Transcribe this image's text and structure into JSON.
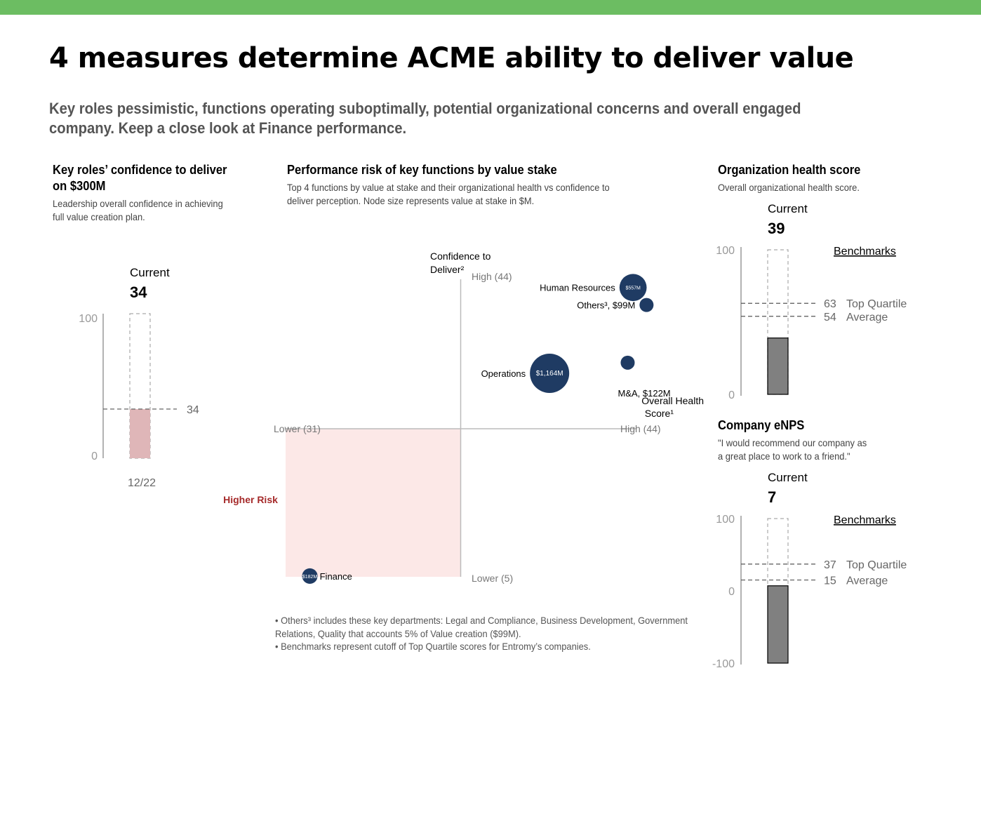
{
  "header": {
    "title": "4 measures determine ACME ability to deliver value",
    "subtitle": "Key roles pessimistic, functions operating suboptimally, potential organizational concerns and overall engaged company. Keep a close look at Finance performance."
  },
  "colors": {
    "top_bar": "#6cbd62",
    "bubble": "#1f3b63",
    "risk_zone": "#fce8e7",
    "higher_risk": "#a52a2a",
    "confidence_bar": "#dfb6b8",
    "score_bar": "#808080"
  },
  "confidence_panel": {
    "title": "Key roles’ confidence to deliver on $300M",
    "description": "Leadership overall confidence in achieving full value creation plan.",
    "current_label": "Current",
    "current_value": "34"
  },
  "risk_panel": {
    "title": "Performance risk of key functions by value stake",
    "description": "Top 4 functions by value at stake and their organizational health vs confidence to deliver perception. Node size represents value at stake in $M.",
    "higher_risk_label": "Higher Risk",
    "footnotes": [
      "Others³ includes these key departments: Legal and Compliance, Business Development, Government Relations, Quality that accounts 5% of Value creation ($99M).",
      "Benchmarks represent cutoff of Top Quartile scores for Entromy’s companies."
    ]
  },
  "health_panel": {
    "title": "Organization health score",
    "description": "Overall organizational health score.",
    "current_label": "Current",
    "current_value": "39",
    "benchmarks_label": "Benchmarks"
  },
  "enps_panel": {
    "title": "Company eNPS",
    "description": "\"I would recommend our company as a great place to work to a friend.\"",
    "current_label": "Current",
    "current_value": "7",
    "benchmarks_label": "Benchmarks"
  },
  "chart_data": [
    {
      "type": "bar",
      "categories": [
        "12/22"
      ],
      "values": [
        34
      ],
      "ylim": [
        0,
        100
      ],
      "yticks": [
        "0",
        "100"
      ],
      "reference_lines": [
        {
          "value": 34,
          "label": "34"
        }
      ]
    },
    {
      "type": "scatter",
      "xlabel": "Overall Health Score¹",
      "ylabel": "Confidence to Deliver²",
      "xticks": [
        "Lower (31)",
        "High (44)"
      ],
      "yticks": [
        "Lower (5)",
        "High (44)"
      ],
      "xlim": [
        31,
        44
      ],
      "ylim": [
        5,
        44
      ],
      "points": [
        {
          "name": "Human Resources",
          "value_label": "$557M",
          "x": 43.9,
          "y": 43.1,
          "size": 557
        },
        {
          "name": "Others³, $99M",
          "value_label": "",
          "x": 44.4,
          "y": 40.8,
          "size": 99
        },
        {
          "name": "M&A, $122M",
          "value_label": "",
          "x": 43.7,
          "y": 33.2,
          "size": 122
        },
        {
          "name": "Operations",
          "value_label": "$1,164M",
          "x": 40.8,
          "y": 31.8,
          "size": 1164
        },
        {
          "name": "Finance",
          "value_label": "$182M",
          "x": 31.9,
          "y": 5.1,
          "size": 182
        }
      ]
    },
    {
      "type": "bar",
      "categories": [
        "Current"
      ],
      "values": [
        39
      ],
      "ylim": [
        0,
        100
      ],
      "yticks": [
        "0",
        "100"
      ],
      "benchmarks": [
        {
          "value": 63,
          "label": "Top Quartile"
        },
        {
          "value": 54,
          "label": "Average"
        }
      ]
    },
    {
      "type": "bar",
      "categories": [
        "Current"
      ],
      "values": [
        7
      ],
      "ylim": [
        -100,
        100
      ],
      "yticks": [
        "-100",
        "0",
        "100"
      ],
      "benchmarks": [
        {
          "value": 37,
          "label": "Top Quartile"
        },
        {
          "value": 15,
          "label": "Average"
        }
      ]
    }
  ]
}
